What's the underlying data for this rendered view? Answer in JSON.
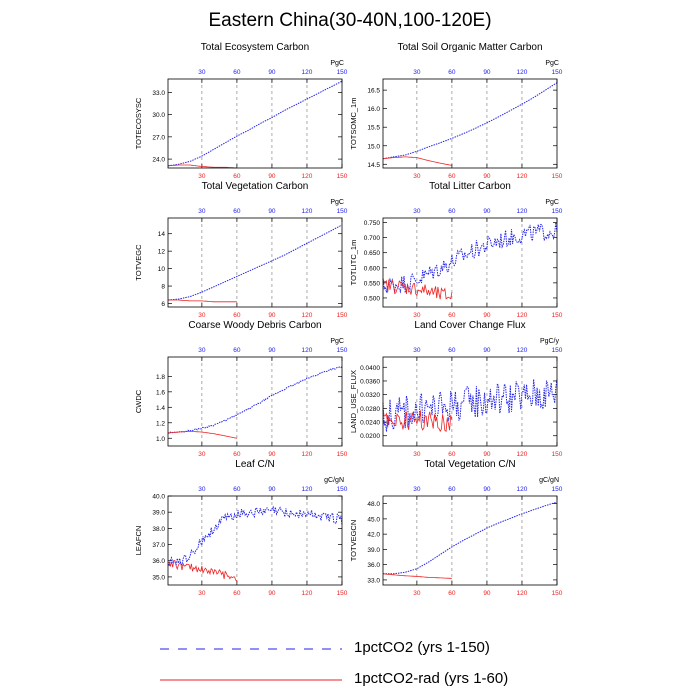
{
  "figure": {
    "title": "Eastern China(30-40N,100-120E)",
    "legend": [
      {
        "label": "1pctCO2 (yrs 1-150)",
        "color": "#2222ee",
        "style": "dashed"
      },
      {
        "label": "1pctCO2-rad (yrs 1-60)",
        "color": "#ee2222",
        "style": "solid"
      }
    ],
    "colors": {
      "primary": "#2222ee",
      "secondary": "#ee2222",
      "grid": "#888888"
    }
  },
  "chart_data": [
    {
      "type": "line",
      "title": "Total Ecosystem Carbon",
      "ylabel": "TOTECOSYSC",
      "unit": "PgC",
      "xlim": [
        1,
        150
      ],
      "ylim": [
        22.8,
        34.8
      ],
      "yticks": [
        24.0,
        27.0,
        30.0,
        33.0
      ],
      "ytick_labels": [
        "24.0",
        "27.0",
        "30.0",
        "33.0"
      ],
      "xticks": [
        30,
        60,
        90,
        120,
        150
      ],
      "xtick_labels": [
        "30",
        "60",
        "90",
        "120",
        "150"
      ],
      "top_xticks": [
        30,
        60,
        90,
        120,
        150
      ],
      "top_xtick_labels": [
        "30",
        "60",
        "90",
        "120",
        "150"
      ],
      "series": [
        {
          "name": "1pctCO2 (yrs 1-150)",
          "x": [
            1,
            10,
            20,
            30,
            40,
            50,
            60,
            70,
            80,
            90,
            100,
            110,
            120,
            130,
            140,
            150
          ],
          "y": [
            23.1,
            23.3,
            23.7,
            24.4,
            25.3,
            26.2,
            27.1,
            27.9,
            28.8,
            29.6,
            30.5,
            31.3,
            32.1,
            32.9,
            33.7,
            34.5
          ]
        },
        {
          "name": "1pctCO2-rad (yrs 1-60)",
          "x": [
            1,
            10,
            20,
            30,
            40,
            50,
            60
          ],
          "y": [
            23.1,
            23.2,
            23.2,
            23.0,
            22.9,
            22.9,
            22.8
          ]
        }
      ]
    },
    {
      "type": "line",
      "title": "Total Soil Organic Matter Carbon",
      "ylabel": "TOTSOMC_1m",
      "unit": "PgC",
      "xlim": [
        1,
        150
      ],
      "ylim": [
        14.4,
        16.8
      ],
      "yticks": [
        14.5,
        15.0,
        15.5,
        16.0,
        16.5
      ],
      "ytick_labels": [
        "14.5",
        "15.0",
        "15.5",
        "16.0",
        "16.5"
      ],
      "xticks": [
        30,
        60,
        90,
        120,
        150
      ],
      "xtick_labels": [
        "30",
        "60",
        "90",
        "120",
        "150"
      ],
      "top_xticks": [
        30,
        60,
        90,
        120,
        150
      ],
      "top_xtick_labels": [
        "30",
        "60",
        "90",
        "120",
        "150"
      ],
      "series": [
        {
          "name": "1pctCO2 (yrs 1-150)",
          "x": [
            1,
            10,
            20,
            30,
            40,
            50,
            60,
            70,
            80,
            90,
            100,
            110,
            120,
            130,
            140,
            150
          ],
          "y": [
            14.65,
            14.7,
            14.75,
            14.85,
            14.97,
            15.08,
            15.2,
            15.33,
            15.47,
            15.62,
            15.78,
            15.95,
            16.12,
            16.3,
            16.5,
            16.7
          ]
        },
        {
          "name": "1pctCO2-rad (yrs 1-60)",
          "x": [
            1,
            10,
            20,
            30,
            40,
            50,
            60
          ],
          "y": [
            14.65,
            14.68,
            14.7,
            14.68,
            14.6,
            14.53,
            14.47
          ]
        }
      ]
    },
    {
      "type": "line",
      "title": "Total Vegetation Carbon",
      "ylabel": "TOTVEGC",
      "unit": "PgC",
      "xlim": [
        1,
        150
      ],
      "ylim": [
        5.6,
        15.8
      ],
      "yticks": [
        6,
        8,
        10,
        12,
        14
      ],
      "ytick_labels": [
        "6",
        "8",
        "10",
        "12",
        "14"
      ],
      "xticks": [
        30,
        60,
        90,
        120,
        150
      ],
      "xtick_labels": [
        "30",
        "60",
        "90",
        "120",
        "150"
      ],
      "top_xticks": [
        30,
        60,
        90,
        120,
        150
      ],
      "top_xtick_labels": [
        "30",
        "60",
        "90",
        "120",
        "150"
      ],
      "series": [
        {
          "name": "1pctCO2 (yrs 1-150)",
          "x": [
            1,
            10,
            20,
            30,
            40,
            50,
            60,
            70,
            80,
            90,
            100,
            110,
            120,
            130,
            140,
            150
          ],
          "y": [
            6.4,
            6.5,
            6.8,
            7.3,
            7.9,
            8.5,
            9.1,
            9.7,
            10.3,
            10.9,
            11.5,
            12.2,
            12.9,
            13.6,
            14.3,
            15.0
          ]
        },
        {
          "name": "1pctCO2-rad (yrs 1-60)",
          "x": [
            1,
            10,
            20,
            30,
            40,
            50,
            60
          ],
          "y": [
            6.4,
            6.4,
            6.3,
            6.3,
            6.2,
            6.2,
            6.2
          ]
        }
      ]
    },
    {
      "type": "line",
      "title": "Total Litter Carbon",
      "ylabel": "TOTLITC_1m",
      "unit": "PgC",
      "xlim": [
        1,
        150
      ],
      "ylim": [
        0.47,
        0.765
      ],
      "yticks": [
        0.5,
        0.55,
        0.6,
        0.65,
        0.7,
        0.75
      ],
      "ytick_labels": [
        "0.500",
        "0.550",
        "0.600",
        "0.650",
        "0.700",
        "0.750"
      ],
      "xticks": [
        30,
        60,
        90,
        120,
        150
      ],
      "xtick_labels": [
        "30",
        "60",
        "90",
        "120",
        "150"
      ],
      "top_xticks": [
        30,
        60,
        90,
        120,
        150
      ],
      "top_xtick_labels": [
        "30",
        "60",
        "90",
        "120",
        "150"
      ],
      "series": [
        {
          "name": "1pctCO2 (yrs 1-150)",
          "x": [
            1,
            10,
            20,
            30,
            40,
            50,
            60,
            70,
            80,
            90,
            100,
            110,
            120,
            130,
            140,
            150
          ],
          "y": [
            0.54,
            0.545,
            0.55,
            0.56,
            0.58,
            0.6,
            0.62,
            0.64,
            0.66,
            0.675,
            0.69,
            0.7,
            0.71,
            0.715,
            0.72,
            0.72
          ],
          "noise": 0.03
        },
        {
          "name": "1pctCO2-rad (yrs 1-60)",
          "x": [
            1,
            10,
            20,
            30,
            40,
            50,
            60
          ],
          "y": [
            0.54,
            0.54,
            0.535,
            0.53,
            0.52,
            0.51,
            0.505
          ],
          "noise": 0.025
        }
      ]
    },
    {
      "type": "line",
      "title": "Coarse Woody Debris Carbon",
      "ylabel": "CWDC",
      "unit": "PgC",
      "xlim": [
        1,
        150
      ],
      "ylim": [
        0.9,
        2.05
      ],
      "yticks": [
        1.0,
        1.2,
        1.4,
        1.6,
        1.8
      ],
      "ytick_labels": [
        "1.0",
        "1.2",
        "1.4",
        "1.6",
        "1.8"
      ],
      "xticks": [
        30,
        60,
        90,
        120,
        150
      ],
      "xtick_labels": [
        "30",
        "60",
        "90",
        "120",
        "150"
      ],
      "top_xticks": [
        30,
        60,
        90,
        120,
        150
      ],
      "top_xtick_labels": [
        "30",
        "60",
        "90",
        "120",
        "150"
      ],
      "series": [
        {
          "name": "1pctCO2 (yrs 1-150)",
          "x": [
            1,
            10,
            20,
            30,
            40,
            50,
            60,
            70,
            80,
            90,
            100,
            110,
            120,
            130,
            140,
            150
          ],
          "y": [
            1.07,
            1.08,
            1.1,
            1.13,
            1.17,
            1.23,
            1.3,
            1.38,
            1.46,
            1.55,
            1.63,
            1.7,
            1.77,
            1.83,
            1.89,
            1.92
          ],
          "noise": 0.01
        },
        {
          "name": "1pctCO2-rad (yrs 1-60)",
          "x": [
            1,
            10,
            20,
            30,
            40,
            50,
            60
          ],
          "y": [
            1.07,
            1.08,
            1.09,
            1.08,
            1.06,
            1.03,
            1.0
          ]
        }
      ]
    },
    {
      "type": "line",
      "title": "Land Cover Change Flux",
      "ylabel": "LAND_USE_FLUX",
      "unit": "PgC/y",
      "xlim": [
        1,
        150
      ],
      "ylim": [
        0.017,
        0.043
      ],
      "yticks": [
        0.02,
        0.024,
        0.028,
        0.032,
        0.036,
        0.04
      ],
      "ytick_labels": [
        "0.0200",
        "0.0240",
        "0.0280",
        "0.0320",
        "0.0360",
        "0.0400"
      ],
      "xticks": [
        30,
        60,
        90,
        120,
        150
      ],
      "xtick_labels": [
        "30",
        "60",
        "90",
        "120",
        "150"
      ],
      "top_xticks": [
        30,
        60,
        90,
        120,
        150
      ],
      "top_xtick_labels": [
        "30",
        "60",
        "90",
        "120",
        "150"
      ],
      "series": [
        {
          "name": "1pctCO2 (yrs 1-150)",
          "x": [
            1,
            10,
            20,
            30,
            40,
            50,
            60,
            70,
            80,
            90,
            100,
            110,
            120,
            130,
            140,
            150
          ],
          "y": [
            0.026,
            0.026,
            0.027,
            0.027,
            0.028,
            0.028,
            0.029,
            0.029,
            0.03,
            0.03,
            0.031,
            0.031,
            0.031,
            0.032,
            0.032,
            0.033
          ],
          "noise": 0.005
        },
        {
          "name": "1pctCO2-rad (yrs 1-60)",
          "x": [
            1,
            10,
            20,
            30,
            40,
            50,
            60
          ],
          "y": [
            0.025,
            0.025,
            0.024,
            0.025,
            0.024,
            0.024,
            0.024
          ],
          "noise": 0.003
        }
      ]
    },
    {
      "type": "line",
      "title": "Leaf C/N",
      "ylabel": "LEAFCN",
      "unit": "gC/gN",
      "xlim": [
        1,
        150
      ],
      "ylim": [
        34.5,
        40.0
      ],
      "yticks": [
        35.0,
        36.0,
        37.0,
        38.0,
        39.0,
        40.0
      ],
      "ytick_labels": [
        "35.0",
        "36.0",
        "37.0",
        "38.0",
        "39.0",
        "40.0"
      ],
      "xticks": [
        30,
        60,
        90,
        120,
        150
      ],
      "xtick_labels": [
        "30",
        "60",
        "90",
        "120",
        "150"
      ],
      "top_xticks": [
        30,
        60,
        90,
        120,
        150
      ],
      "top_xtick_labels": [
        "30",
        "60",
        "90",
        "120",
        "150"
      ],
      "series": [
        {
          "name": "1pctCO2 (yrs 1-150)",
          "x": [
            1,
            10,
            20,
            30,
            40,
            50,
            60,
            70,
            80,
            90,
            100,
            110,
            120,
            130,
            140,
            150
          ],
          "y": [
            35.9,
            35.9,
            36.3,
            37.2,
            38.0,
            38.6,
            38.9,
            39.0,
            39.0,
            39.1,
            39.0,
            38.9,
            38.9,
            38.8,
            38.7,
            38.5
          ],
          "noise": 0.3
        },
        {
          "name": "1pctCO2-rad (yrs 1-60)",
          "x": [
            1,
            10,
            20,
            30,
            40,
            50,
            60
          ],
          "y": [
            35.9,
            35.7,
            35.6,
            35.5,
            35.3,
            35.1,
            35.0
          ],
          "noise": 0.25
        }
      ]
    },
    {
      "type": "line",
      "title": "Total Vegetation C/N",
      "ylabel": "TOTVEGCN",
      "unit": "gC/gN",
      "xlim": [
        1,
        150
      ],
      "ylim": [
        32.0,
        49.5
      ],
      "yticks": [
        33.0,
        36.0,
        39.0,
        42.0,
        45.0,
        48.0
      ],
      "ytick_labels": [
        "33.0",
        "36.0",
        "39.0",
        "42.0",
        "45.0",
        "48.0"
      ],
      "xticks": [
        30,
        60,
        90,
        120,
        150
      ],
      "xtick_labels": [
        "30",
        "60",
        "90",
        "120",
        "150"
      ],
      "top_xticks": [
        30,
        60,
        90,
        120,
        150
      ],
      "top_xtick_labels": [
        "30",
        "60",
        "90",
        "120",
        "150"
      ],
      "series": [
        {
          "name": "1pctCO2 (yrs 1-150)",
          "x": [
            1,
            10,
            20,
            30,
            40,
            50,
            60,
            70,
            80,
            90,
            100,
            110,
            120,
            130,
            140,
            150
          ],
          "y": [
            34.2,
            34.2,
            34.5,
            35.2,
            36.5,
            38.0,
            39.5,
            40.8,
            42.0,
            43.2,
            44.2,
            45.1,
            46.0,
            46.8,
            47.6,
            48.3
          ]
        },
        {
          "name": "1pctCO2-rad (yrs 1-60)",
          "x": [
            1,
            10,
            20,
            30,
            40,
            50,
            60
          ],
          "y": [
            34.2,
            34.0,
            33.8,
            33.7,
            33.5,
            33.4,
            33.3
          ]
        }
      ]
    }
  ]
}
